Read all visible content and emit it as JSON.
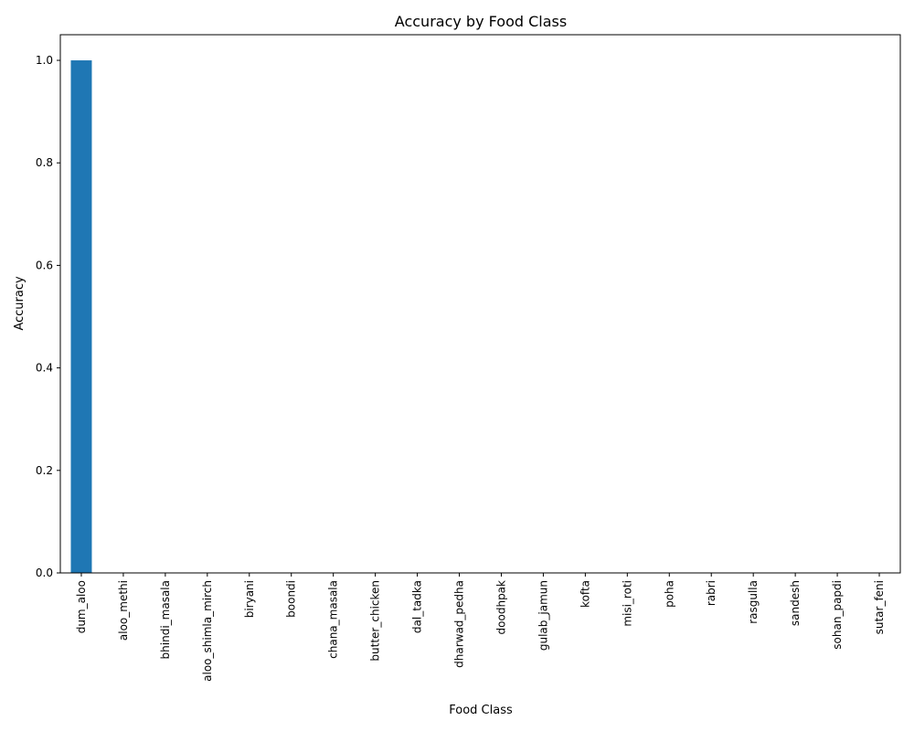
{
  "chart_data": {
    "type": "bar",
    "title": "Accuracy by Food Class",
    "xlabel": "Food Class",
    "ylabel": "Accuracy",
    "categories": [
      "dum_aloo",
      "aloo_methi",
      "bhindi_masala",
      "aloo_shimla_mirch",
      "biryani",
      "boondi",
      "chana_masala",
      "butter_chicken",
      "dal_tadka",
      "dharwad_pedha",
      "doodhpak",
      "gulab_jamun",
      "kofta",
      "misi_roti",
      "poha",
      "rabri",
      "rasgulla",
      "sandesh",
      "sohan_papdi",
      "sutar_feni"
    ],
    "values": [
      1.0,
      0,
      0,
      0,
      0,
      0,
      0,
      0,
      0,
      0,
      0,
      0,
      0,
      0,
      0,
      0,
      0,
      0,
      0,
      0
    ],
    "ylim": [
      0,
      1.05
    ],
    "yticks": [
      "0.0",
      "0.2",
      "0.4",
      "0.6",
      "0.8",
      "1.0"
    ],
    "grid": false,
    "legend": "none",
    "bar_color": "#1f77b4"
  }
}
